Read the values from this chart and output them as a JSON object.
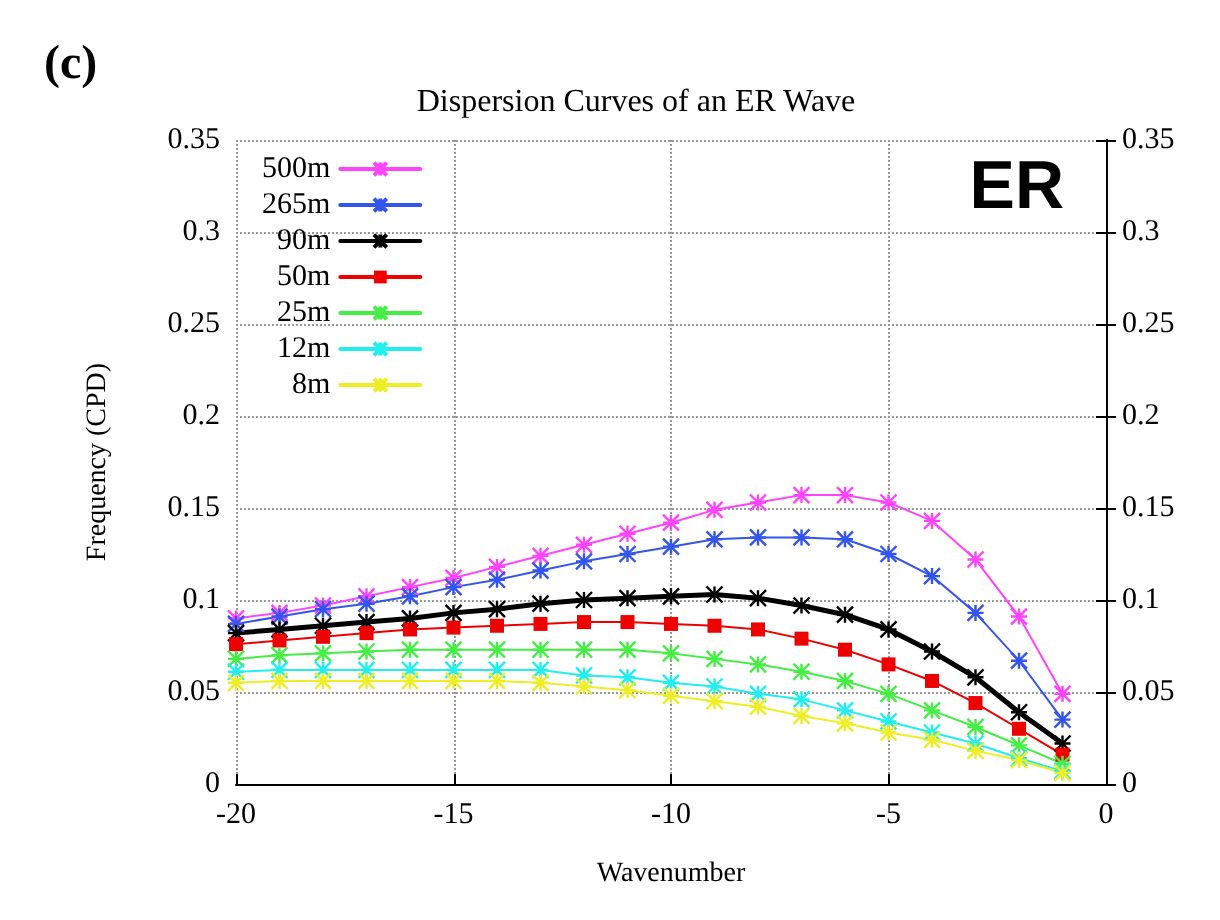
{
  "chart_data": {
    "type": "line",
    "title": "Dispersion Curves of an ER Wave",
    "xlabel": "Wavenumber",
    "ylabel": "Frequency (CPD)",
    "annotations": [
      "(c)",
      "ER"
    ],
    "x": [
      -20,
      -19,
      -18,
      -17,
      -16,
      -15,
      -14,
      -13,
      -12,
      -11,
      -10,
      -9,
      -8,
      -7,
      -6,
      -5,
      -4,
      -3,
      -2,
      -1
    ],
    "series": [
      {
        "name": "500m",
        "color": "#ff44ff",
        "marker": "cross",
        "values": [
          0.09,
          0.093,
          0.097,
          0.102,
          0.107,
          0.112,
          0.118,
          0.124,
          0.13,
          0.136,
          0.142,
          0.149,
          0.153,
          0.157,
          0.157,
          0.153,
          0.143,
          0.122,
          0.091,
          0.049
        ]
      },
      {
        "name": "265m",
        "color": "#3355ee",
        "marker": "cross",
        "values": [
          0.087,
          0.091,
          0.095,
          0.098,
          0.102,
          0.107,
          0.111,
          0.116,
          0.121,
          0.125,
          0.129,
          0.133,
          0.134,
          0.134,
          0.133,
          0.125,
          0.113,
          0.093,
          0.067,
          0.035
        ]
      },
      {
        "name": "90m",
        "color": "#000000",
        "marker": "cross",
        "values": [
          0.082,
          0.084,
          0.086,
          0.088,
          0.09,
          0.093,
          0.095,
          0.098,
          0.1,
          0.101,
          0.102,
          0.103,
          0.101,
          0.097,
          0.092,
          0.084,
          0.072,
          0.058,
          0.039,
          0.022
        ]
      },
      {
        "name": "50m",
        "color": "#ee0000",
        "marker": "square",
        "values": [
          0.076,
          0.078,
          0.08,
          0.082,
          0.084,
          0.085,
          0.086,
          0.087,
          0.088,
          0.088,
          0.087,
          0.086,
          0.084,
          0.079,
          0.073,
          0.065,
          0.056,
          0.044,
          0.03,
          0.016
        ]
      },
      {
        "name": "25m",
        "color": "#44ee44",
        "marker": "cross",
        "values": [
          0.068,
          0.07,
          0.071,
          0.072,
          0.073,
          0.073,
          0.073,
          0.073,
          0.073,
          0.073,
          0.071,
          0.068,
          0.065,
          0.061,
          0.056,
          0.049,
          0.04,
          0.031,
          0.021,
          0.011
        ]
      },
      {
        "name": "12m",
        "color": "#22eeee",
        "marker": "cross",
        "values": [
          0.061,
          0.062,
          0.062,
          0.062,
          0.062,
          0.062,
          0.062,
          0.062,
          0.059,
          0.058,
          0.055,
          0.053,
          0.049,
          0.046,
          0.04,
          0.034,
          0.028,
          0.022,
          0.014,
          0.007
        ]
      },
      {
        "name": "8m",
        "color": "#eeee22",
        "marker": "cross",
        "values": [
          0.055,
          0.056,
          0.056,
          0.056,
          0.056,
          0.056,
          0.056,
          0.055,
          0.053,
          0.051,
          0.048,
          0.045,
          0.042,
          0.037,
          0.033,
          0.028,
          0.024,
          0.018,
          0.013,
          0.006
        ]
      }
    ],
    "xlim": [
      -20,
      0
    ],
    "xticks": [
      -20,
      -15,
      -10,
      -5,
      0
    ],
    "ylim": [
      0,
      0.35
    ],
    "yticks": [
      0,
      0.05,
      0.1,
      0.15,
      0.2,
      0.25,
      0.3,
      0.35
    ],
    "y2lim": [
      0,
      0.35
    ],
    "y2ticks": [
      0,
      0.05,
      0.1,
      0.15,
      0.2,
      0.25,
      0.3,
      0.35
    ],
    "grid": true,
    "legend": "top left",
    "line_style": "solid"
  }
}
